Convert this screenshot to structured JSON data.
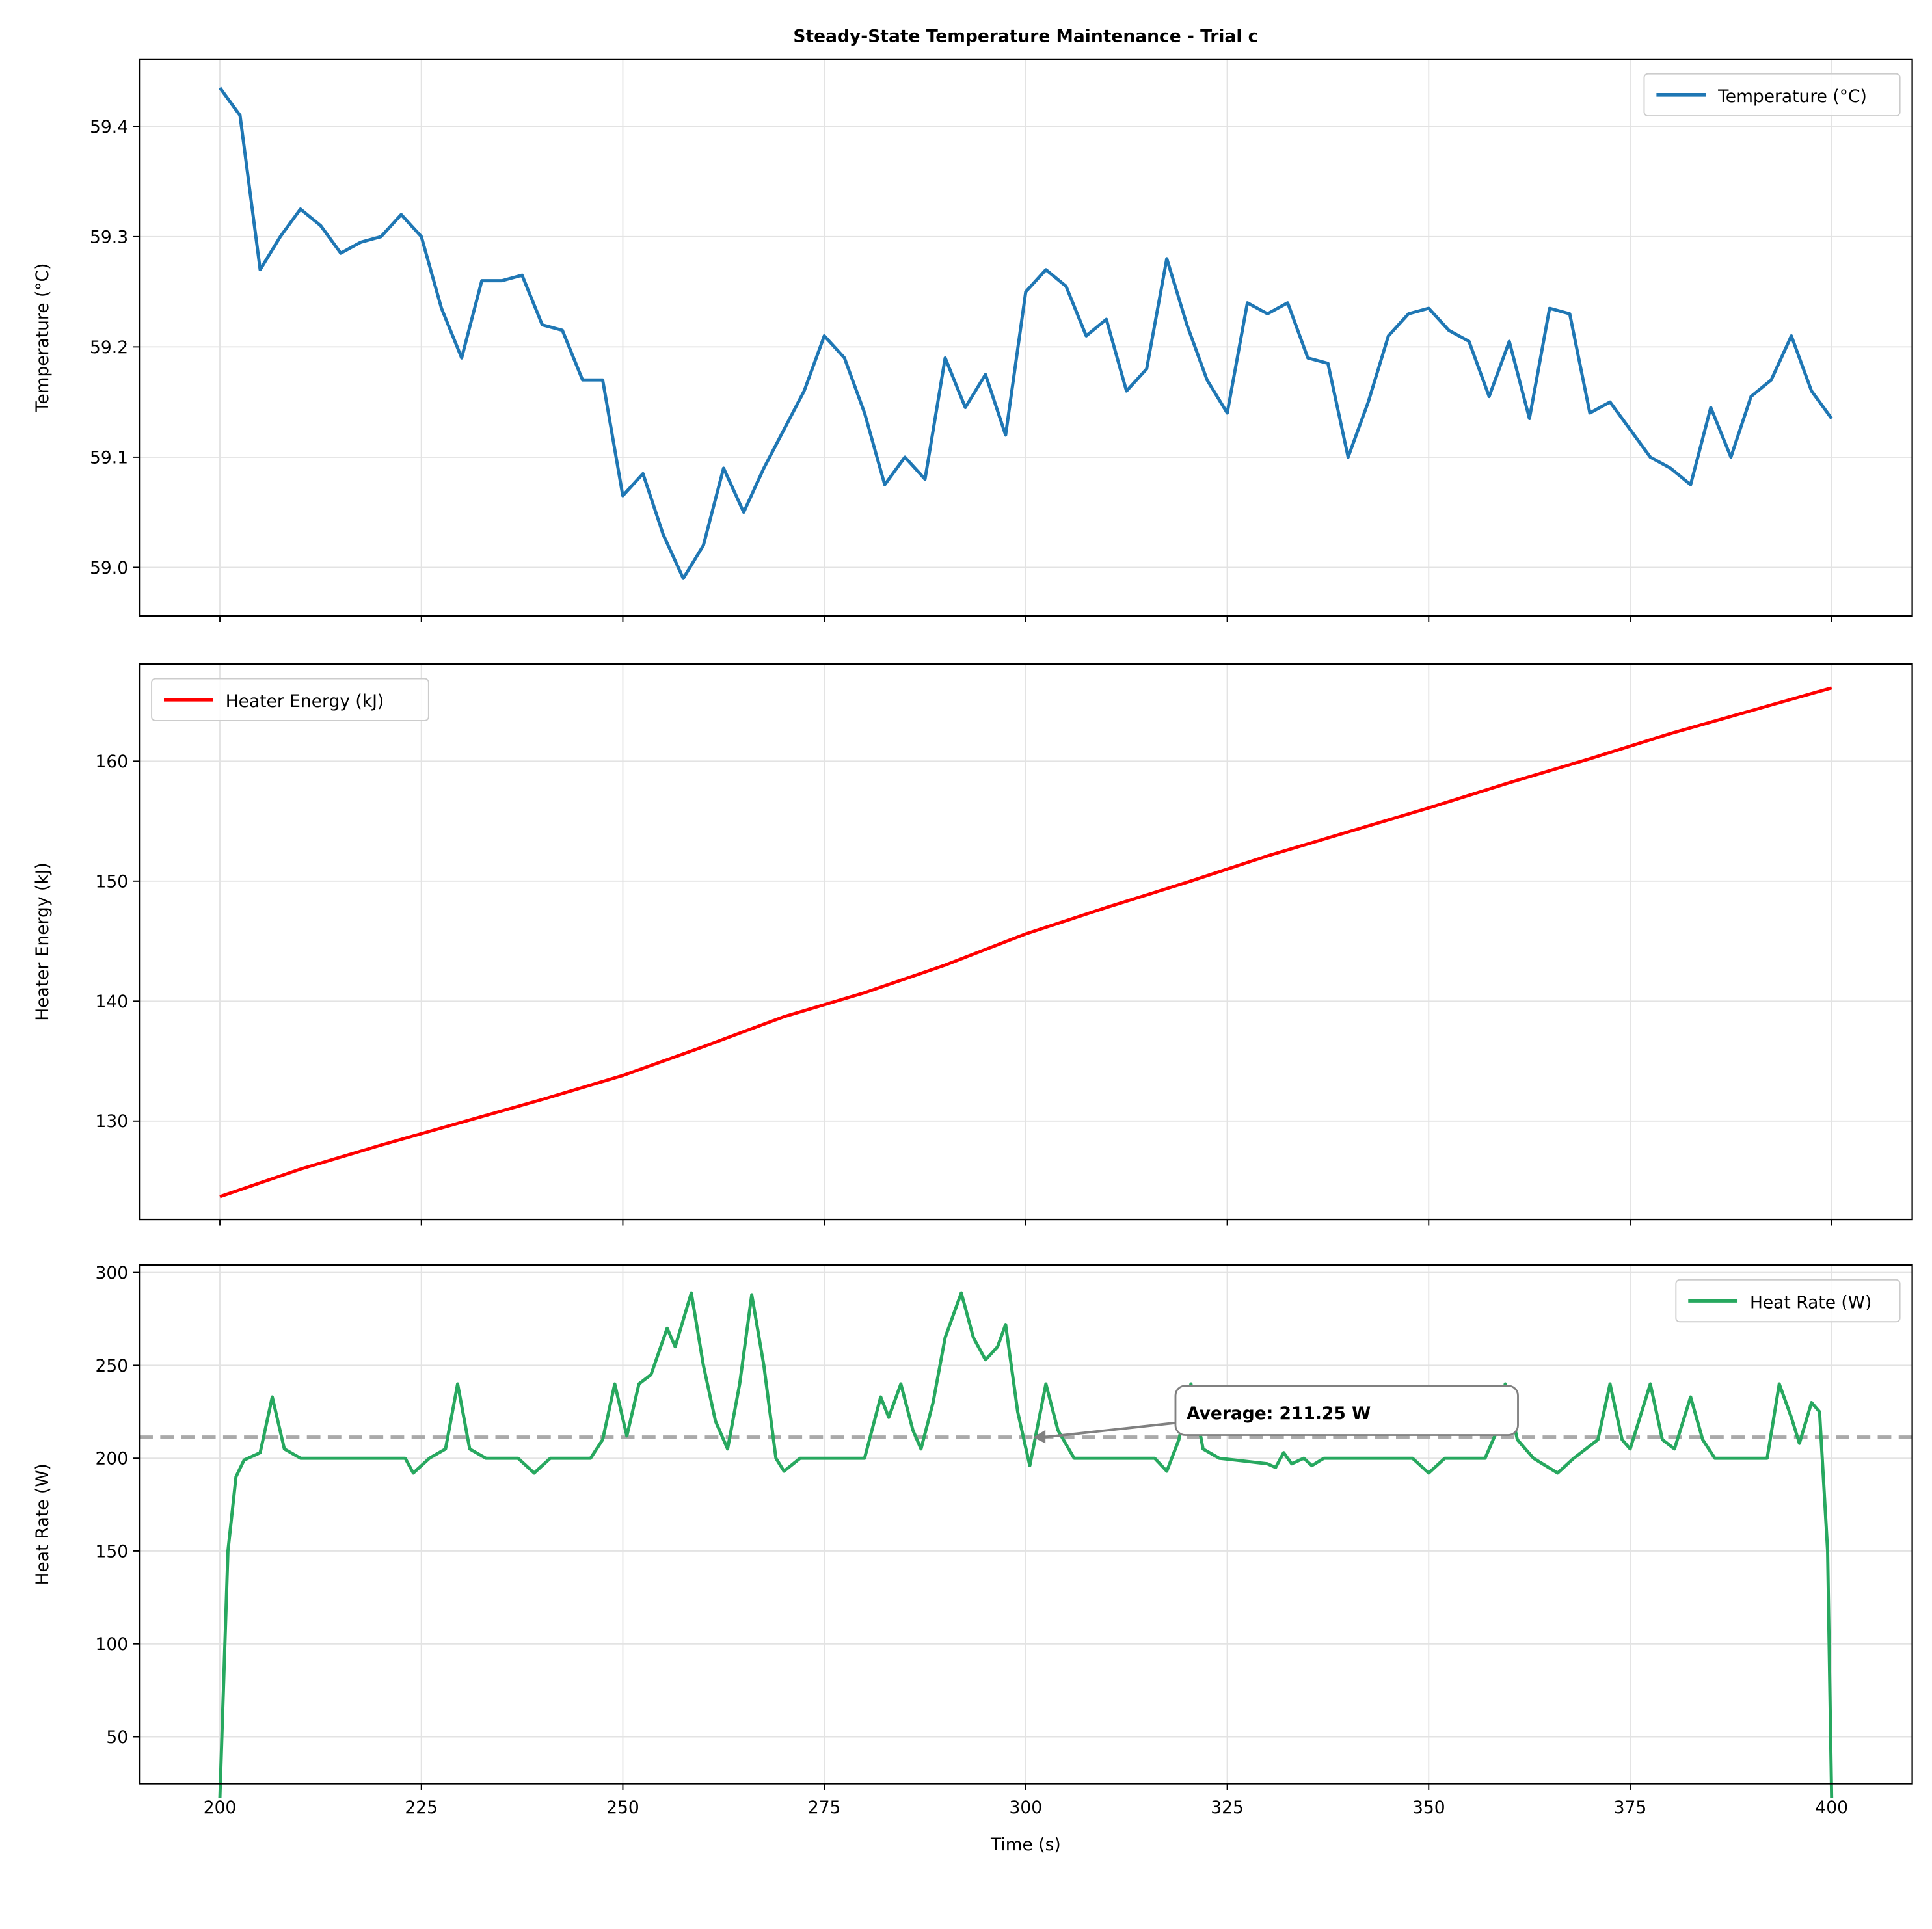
{
  "chart_data": [
    {
      "type": "line",
      "title": "Steady-State Temperature Maintenance - Trial c",
      "ylabel": "Temperature (°C)",
      "x": [
        200,
        202.5,
        205,
        207.5,
        210,
        212.5,
        215,
        217.5,
        220,
        222.5,
        225,
        227.5,
        230,
        232.5,
        235,
        237.5,
        240,
        242.5,
        245,
        247.5,
        250,
        252.5,
        255,
        257.5,
        260,
        262.5,
        265,
        267.5,
        270,
        272.5,
        275,
        277.5,
        280,
        282.5,
        285,
        287.5,
        290,
        292.5,
        295,
        297.5,
        300,
        302.5,
        305,
        307.5,
        310,
        312.5,
        315,
        317.5,
        320,
        322.5,
        325,
        327.5,
        330,
        332.5,
        335,
        337.5,
        340,
        342.5,
        345,
        347.5,
        350,
        352.5,
        355,
        357.5,
        360,
        362.5,
        365,
        367.5,
        370,
        372.5,
        375,
        377.5,
        380,
        382.5,
        385,
        387.5,
        390,
        392.5,
        395,
        397.5,
        400
      ],
      "series": [
        {
          "name": "Temperature (°C)",
          "color": "#1f77b4",
          "values": [
            59.435,
            59.41,
            59.27,
            59.3,
            59.325,
            59.31,
            59.285,
            59.295,
            59.3,
            59.32,
            59.3,
            59.235,
            59.19,
            59.26,
            59.26,
            59.265,
            59.22,
            59.215,
            59.17,
            59.17,
            59.065,
            59.085,
            59.03,
            58.99,
            59.02,
            59.09,
            59.05,
            59.09,
            59.125,
            59.16,
            59.21,
            59.19,
            59.14,
            59.075,
            59.1,
            59.08,
            59.19,
            59.145,
            59.175,
            59.12,
            59.25,
            59.27,
            59.255,
            59.21,
            59.225,
            59.16,
            59.18,
            59.28,
            59.22,
            59.17,
            59.14,
            59.24,
            59.23,
            59.24,
            59.19,
            59.185,
            59.1,
            59.15,
            59.21,
            59.23,
            59.235,
            59.215,
            59.205,
            59.155,
            59.205,
            59.135,
            59.235,
            59.23,
            59.14,
            59.15,
            59.125,
            59.1,
            59.09,
            59.075,
            59.145,
            59.1,
            59.155,
            59.17,
            59.21,
            59.16,
            59.135
          ]
        }
      ],
      "xlim": [
        190,
        410
      ],
      "xticks": [
        200,
        225,
        250,
        275,
        300,
        325,
        350,
        375,
        400
      ],
      "ylim": [
        58.956,
        59.461
      ],
      "yticks": [
        {
          "value": 59,
          "label": "59.0"
        },
        59.1,
        59.2,
        59.3,
        59.4
      ],
      "grid": true,
      "legend": "upper right"
    },
    {
      "type": "line",
      "ylabel": "Heater Energy (kJ)",
      "x": [
        200,
        210,
        220,
        230,
        240,
        250,
        260,
        270,
        280,
        290,
        300,
        310,
        320,
        330,
        340,
        350,
        360,
        370,
        380,
        390,
        400
      ],
      "series": [
        {
          "name": "Heater Energy (kJ)",
          "color": "#ff0000",
          "values": [
            123.7,
            126.0,
            128.0,
            129.9,
            131.8,
            133.8,
            136.2,
            138.7,
            140.7,
            143.0,
            145.6,
            147.8,
            149.9,
            152.1,
            154.1,
            156.1,
            158.2,
            160.2,
            162.3,
            164.2,
            166.1
          ]
        }
      ],
      "xlim": [
        190,
        410
      ],
      "xticks": [
        200,
        225,
        250,
        275,
        300,
        325,
        350,
        375,
        400
      ],
      "ylim": [
        121.8,
        168.1
      ],
      "yticks": [
        130,
        140,
        150,
        160
      ],
      "grid": true,
      "legend": "upper left"
    },
    {
      "type": "line",
      "ylabel": "Heat Rate (W)",
      "xlabel": "Time (s)",
      "x": [
        200,
        201,
        202,
        203,
        205,
        206.5,
        208,
        210,
        223,
        224,
        226,
        228,
        229.5,
        231,
        233,
        237,
        239,
        241,
        246,
        247.5,
        249,
        250.5,
        252,
        253.5,
        255.5,
        256.5,
        258.5,
        260,
        261.5,
        263,
        264.5,
        266,
        267.5,
        269,
        270,
        272,
        280,
        282,
        283,
        284.5,
        286,
        287,
        288.5,
        290,
        292,
        293.5,
        295,
        296.5,
        297.5,
        299,
        300.5,
        302.5,
        304,
        306,
        316,
        317.5,
        319,
        320.5,
        322,
        324,
        330,
        331,
        332,
        333,
        334.5,
        335.5,
        337,
        348,
        350,
        352,
        357,
        358.5,
        359.5,
        361,
        363,
        366,
        368,
        371,
        372.5,
        374,
        375,
        377.5,
        379,
        380.5,
        382.5,
        384,
        385.5,
        392,
        393.5,
        395,
        396,
        397.5,
        398.5,
        399.5,
        400
      ],
      "series": [
        {
          "name": "Heat Rate (W)",
          "color": "#27a85f",
          "values": [
            17,
            150,
            190,
            199,
            203,
            233,
            205,
            200,
            200,
            192,
            200,
            205,
            240,
            205,
            200,
            200,
            192,
            200,
            200,
            210,
            240,
            212,
            240,
            245,
            270,
            260,
            289,
            250,
            220,
            205,
            240,
            288,
            250,
            200,
            193,
            200,
            200,
            233,
            222,
            240,
            215,
            205,
            230,
            265,
            289,
            265,
            253,
            260,
            272,
            225,
            196,
            240,
            215,
            200,
            200,
            193,
            210,
            240,
            205,
            200,
            197,
            195,
            203,
            197,
            200,
            196,
            200,
            200,
            192,
            200,
            200,
            215,
            240,
            210,
            200,
            192,
            200,
            210,
            240,
            210,
            205,
            240,
            210,
            205,
            233,
            210,
            200,
            200,
            240,
            222,
            208,
            230,
            225,
            150,
            17
          ]
        }
      ],
      "reference_line": {
        "value": 211.25,
        "color": "#aaaaaa"
      },
      "annotation": "Average: 211.25 W",
      "xlim": [
        190,
        410
      ],
      "xticks": [
        200,
        225,
        250,
        275,
        300,
        325,
        350,
        375,
        400
      ],
      "ylim": [
        24.8,
        304
      ],
      "yticks": [
        50,
        100,
        150,
        200,
        250,
        300
      ],
      "grid": true,
      "legend": "upper right"
    }
  ]
}
